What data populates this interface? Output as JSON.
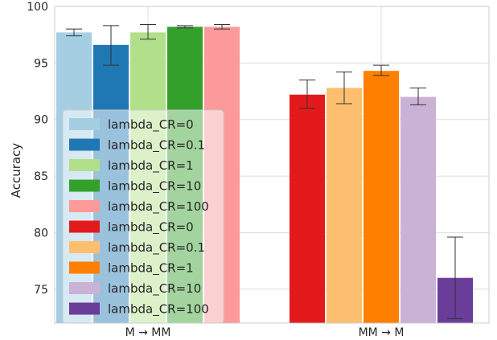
{
  "chart_data": {
    "type": "bar",
    "categories": [
      "M → MM",
      "MM → M"
    ],
    "xlabel": "",
    "ylabel": "Accuracy",
    "ylim": [
      72,
      100
    ],
    "yticks": [
      75,
      80,
      85,
      90,
      95,
      100
    ],
    "grid": true,
    "legend_position": "lower-left",
    "groups": [
      {
        "category": "M → MM",
        "bars": [
          {
            "name": "lambda_CR=0",
            "value": 97.7,
            "err_low": 97.4,
            "err_high": 98.0,
            "color": "#a6cee3"
          },
          {
            "name": "lambda_CR=0.1",
            "value": 96.6,
            "err_low": 94.8,
            "err_high": 98.3,
            "color": "#1f78b4"
          },
          {
            "name": "lambda_CR=1",
            "value": 97.7,
            "err_low": 97.1,
            "err_high": 98.4,
            "color": "#b2df8a"
          },
          {
            "name": "lambda_CR=10",
            "value": 98.2,
            "err_low": 98.1,
            "err_high": 98.3,
            "color": "#33a02c"
          },
          {
            "name": "lambda_CR=100",
            "value": 98.2,
            "err_low": 98.0,
            "err_high": 98.4,
            "color": "#fb9a99"
          }
        ]
      },
      {
        "category": "MM → M",
        "bars": [
          {
            "name": "lambda_CR=0",
            "value": 92.2,
            "err_low": 91.0,
            "err_high": 93.5,
            "color": "#e31a1c"
          },
          {
            "name": "lambda_CR=0.1",
            "value": 92.8,
            "err_low": 91.4,
            "err_high": 94.2,
            "color": "#fdbf6f"
          },
          {
            "name": "lambda_CR=1",
            "value": 94.3,
            "err_low": 93.9,
            "err_high": 94.8,
            "color": "#ff7f00"
          },
          {
            "name": "lambda_CR=10",
            "value": 92.0,
            "err_low": 91.3,
            "err_high": 92.8,
            "color": "#cab2d6"
          },
          {
            "name": "lambda_CR=100",
            "value": 76.0,
            "err_low": 72.4,
            "err_high": 79.6,
            "color": "#6a3d9a"
          }
        ]
      }
    ],
    "legend": [
      {
        "label": "lambda_CR=0",
        "color": "#a6cee3"
      },
      {
        "label": "lambda_CR=0.1",
        "color": "#1f78b4"
      },
      {
        "label": "lambda_CR=1",
        "color": "#b2df8a"
      },
      {
        "label": "lambda_CR=10",
        "color": "#33a02c"
      },
      {
        "label": "lambda_CR=100",
        "color": "#fb9a99"
      },
      {
        "label": "lambda_CR=0",
        "color": "#e31a1c"
      },
      {
        "label": "lambda_CR=0.1",
        "color": "#fdbf6f"
      },
      {
        "label": "lambda_CR=1",
        "color": "#ff7f00"
      },
      {
        "label": "lambda_CR=10",
        "color": "#cab2d6"
      },
      {
        "label": "lambda_CR=100",
        "color": "#6a3d9a"
      }
    ]
  }
}
